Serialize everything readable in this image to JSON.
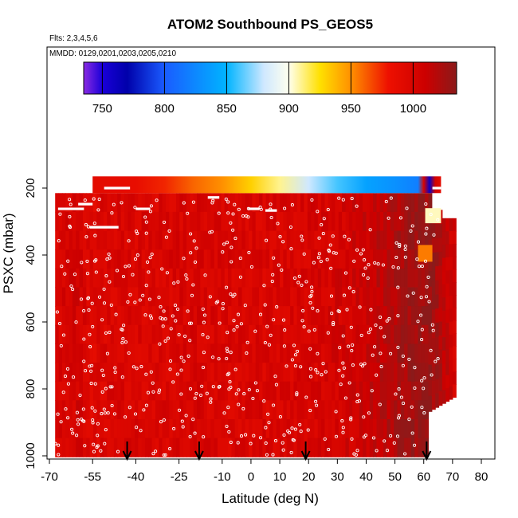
{
  "chart_data": {
    "type": "heatmap",
    "title": "ATOM2 Southbound PS_GEOS5",
    "subtitle_flights": "Flts: 2,3,4,5,6",
    "subtitle_dates": "MMDD: 0129,0201,0203,0205,0210",
    "xlabel": "Latitude (deg N)",
    "ylabel": "PSXC (mbar)",
    "xlim": [
      -70,
      80
    ],
    "ylim": [
      1000,
      100
    ],
    "x_ticks": [
      -70,
      -55,
      -40,
      -25,
      -10,
      0,
      10,
      20,
      30,
      40,
      50,
      60,
      70,
      80
    ],
    "y_ticks": [
      200,
      400,
      600,
      800,
      1000
    ],
    "colorbar": {
      "range": [
        735,
        1035
      ],
      "ticks": [
        750,
        800,
        850,
        900,
        950,
        1000
      ],
      "stops": [
        {
          "v": 735,
          "c": "#8a2be2"
        },
        {
          "v": 750,
          "c": "#1a00d8"
        },
        {
          "v": 770,
          "c": "#0000aa"
        },
        {
          "v": 800,
          "c": "#1a5cff"
        },
        {
          "v": 850,
          "c": "#00b4ff"
        },
        {
          "v": 880,
          "c": "#cfe8ff"
        },
        {
          "v": 900,
          "c": "#ffffee"
        },
        {
          "v": 925,
          "c": "#ffe000"
        },
        {
          "v": 950,
          "c": "#ff9000"
        },
        {
          "v": 980,
          "c": "#ee1000"
        },
        {
          "v": 1010,
          "c": "#cc0000"
        },
        {
          "v": 1035,
          "c": "#8b1a1a"
        }
      ]
    },
    "field_values_by_latitude": {
      "latitude": [
        -68,
        -60,
        -55,
        -50,
        -40,
        -30,
        -20,
        -10,
        0,
        10,
        20,
        30,
        40,
        48,
        55,
        62,
        70
      ],
      "value": [
        1000,
        1005,
        995,
        1000,
        1000,
        1000,
        1002,
        1000,
        1000,
        1000,
        1002,
        1005,
        1010,
        1020,
        1028,
        1030,
        1005
      ]
    },
    "top_band": {
      "pressure": 195,
      "latitude": [
        -55,
        -40,
        -30,
        -20,
        -10,
        0,
        10,
        20,
        30,
        40,
        50,
        58,
        60,
        62,
        64,
        66
      ],
      "value": [
        990,
        985,
        975,
        960,
        950,
        930,
        910,
        880,
        860,
        840,
        830,
        820,
        1000,
        760,
        1005,
        990
      ]
    },
    "arrows_latitude": [
      -43,
      -18,
      19,
      61
    ],
    "colors": {
      "plot_border": "#000000",
      "sample_marker": "#ffffff",
      "arrow": "#000000"
    }
  }
}
